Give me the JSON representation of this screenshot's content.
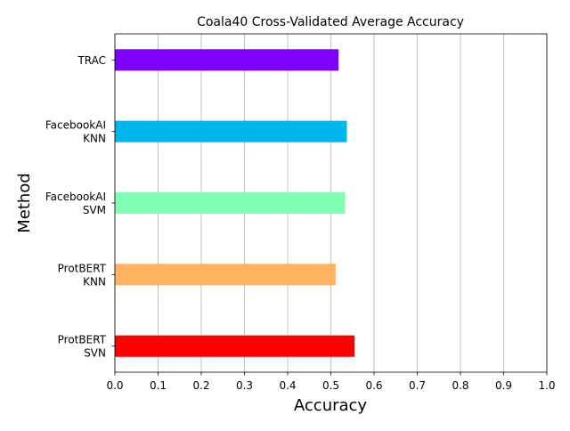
{
  "chart_data": {
    "type": "bar",
    "orientation": "horizontal",
    "title": "Coala40 Cross-Validated Average Accuracy",
    "xlabel": "Accuracy",
    "ylabel": "Method",
    "xlim": [
      0.0,
      1.0
    ],
    "xticks": [
      "0.0",
      "0.1",
      "0.2",
      "0.3",
      "0.4",
      "0.5",
      "0.6",
      "0.7",
      "0.8",
      "0.9",
      "1.0"
    ],
    "grid": "vertical",
    "categories": [
      {
        "lines": [
          "ProtBERT",
          "SVN"
        ],
        "value": 0.555,
        "color": "#ff0000"
      },
      {
        "lines": [
          "ProtBERT",
          "KNN"
        ],
        "value": 0.511,
        "color": "#ffb360"
      },
      {
        "lines": [
          "FacebookAI",
          "SVM"
        ],
        "value": 0.533,
        "color": "#80ffb4"
      },
      {
        "lines": [
          "FacebookAI",
          "KNN"
        ],
        "value": 0.537,
        "color": "#00b5eb"
      },
      {
        "lines": [
          "TRAC"
        ],
        "value": 0.518,
        "color": "#8000ff"
      }
    ]
  }
}
